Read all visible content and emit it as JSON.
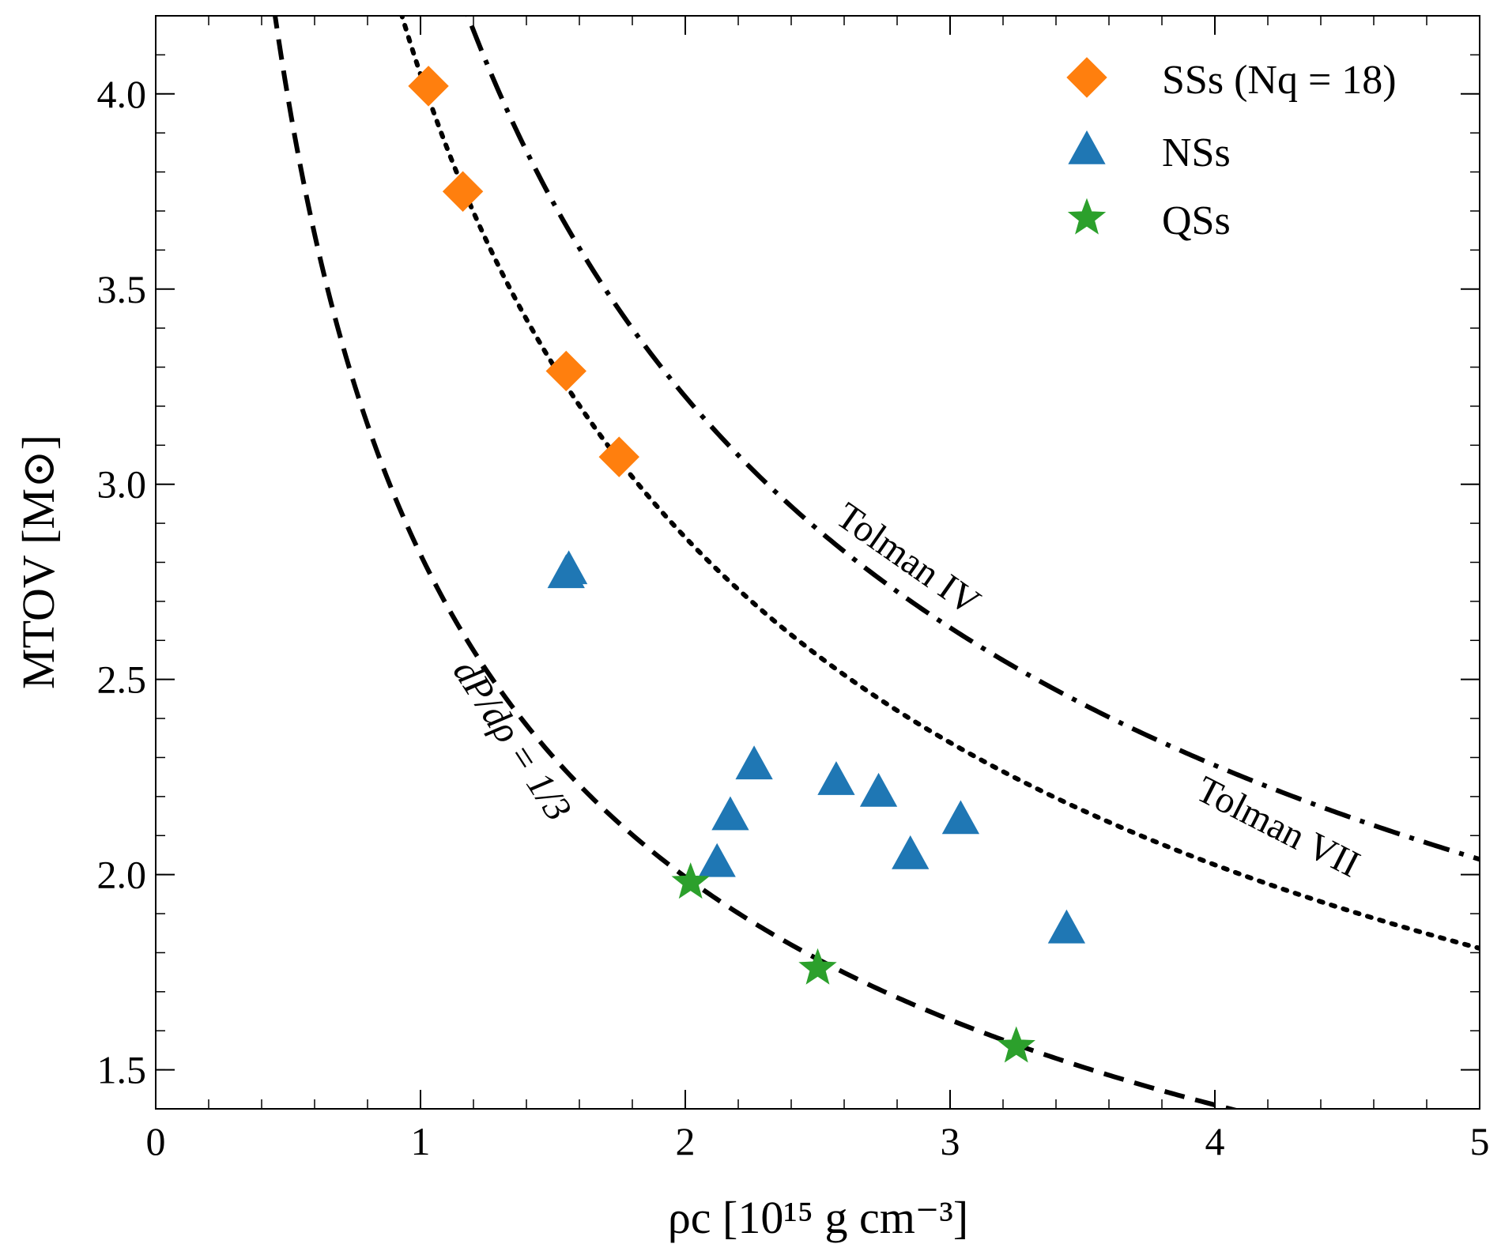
{
  "chart_data": {
    "type": "scatter",
    "xlabel": "ρc [10¹⁵ g cm⁻³]",
    "ylabel": "MTOV [M⊙]",
    "xlim": [
      0,
      5
    ],
    "ylim": [
      1.4,
      4.2
    ],
    "x_ticks": [
      {
        "value": 0,
        "label": "0"
      },
      {
        "value": 1,
        "label": "1"
      },
      {
        "value": 2,
        "label": "2"
      },
      {
        "value": 3,
        "label": "3"
      },
      {
        "value": 4,
        "label": "4"
      },
      {
        "value": 5,
        "label": "5"
      }
    ],
    "y_ticks": [
      {
        "value": 1.5,
        "label": "1.5"
      },
      {
        "value": 2.0,
        "label": "2.0"
      },
      {
        "value": 2.5,
        "label": "2.5"
      },
      {
        "value": 3.0,
        "label": "3.0"
      },
      {
        "value": 3.5,
        "label": "3.5"
      },
      {
        "value": 4.0,
        "label": "4.0"
      }
    ],
    "x_minor_step": 0.2,
    "y_minor_step": 0.1,
    "grid": false,
    "legend_position": "top-right",
    "series": [
      {
        "name": "SSs (Nq = 18)",
        "marker": "diamond",
        "color": "#ff7f0e",
        "points": [
          {
            "x": 1.03,
            "y": 4.02
          },
          {
            "x": 1.16,
            "y": 3.75
          },
          {
            "x": 1.55,
            "y": 3.29
          },
          {
            "x": 1.75,
            "y": 3.07
          }
        ]
      },
      {
        "name": "NSs",
        "marker": "triangle",
        "color": "#1f77b4",
        "points": [
          {
            "x": 1.56,
            "y": 2.78
          },
          {
            "x": 1.55,
            "y": 2.77
          },
          {
            "x": 2.12,
            "y": 2.03
          },
          {
            "x": 2.17,
            "y": 2.15
          },
          {
            "x": 2.26,
            "y": 2.28
          },
          {
            "x": 2.57,
            "y": 2.24
          },
          {
            "x": 2.73,
            "y": 2.21
          },
          {
            "x": 2.85,
            "y": 2.05
          },
          {
            "x": 3.04,
            "y": 2.14
          },
          {
            "x": 3.44,
            "y": 1.86
          }
        ]
      },
      {
        "name": "QSs",
        "marker": "star",
        "color": "#2ca02c",
        "points": [
          {
            "x": 2.02,
            "y": 1.98
          },
          {
            "x": 2.5,
            "y": 1.76
          },
          {
            "x": 3.25,
            "y": 1.56
          }
        ]
      }
    ],
    "curves": [
      {
        "name": "dP/dρ = 1/3",
        "label": "dP/dρ = 1/3",
        "style": "dashed",
        "coefficient": 2.82
      },
      {
        "name": "Tolman VII",
        "label": "Tolman VII",
        "style": "dotted",
        "coefficient": 4.05
      },
      {
        "name": "Tolman IV",
        "label": "Tolman IV",
        "style": "dashdot",
        "coefficient": 4.56
      }
    ],
    "curve_formula": "M = coefficient / sqrt(ρc)"
  }
}
